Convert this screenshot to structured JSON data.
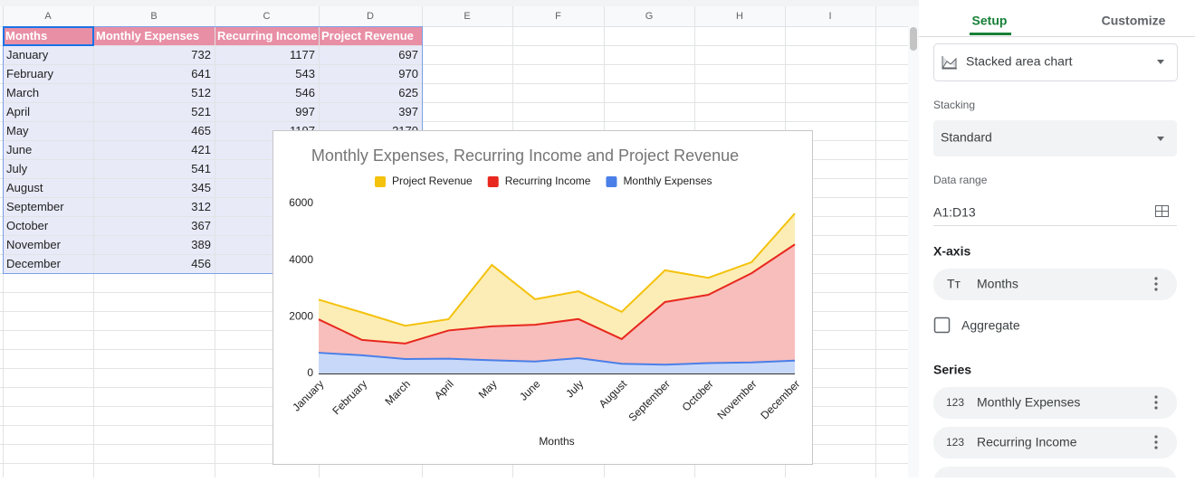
{
  "sheet": {
    "columns": [
      "A",
      "B",
      "C",
      "D",
      "E",
      "F",
      "G",
      "H",
      "I"
    ]
  },
  "sidebar": {
    "tabs": [
      "Setup",
      "Customize"
    ],
    "chart_type": "Stacked area chart",
    "stacking_label": "Stacking",
    "stacking": "Standard",
    "data_range_label": "Data range",
    "data_range": "A1:D13",
    "x_axis_label": "X-axis",
    "x_axis_icon": "Tт",
    "aggregate": "Aggregate",
    "series_label": "Series",
    "series_icon": "123"
  },
  "chart_data": {
    "type": "area",
    "stacked": true,
    "title": "Monthly Expenses, Recurring Income and Project Revenue",
    "x_label": "Months",
    "categories": [
      "January",
      "February",
      "March",
      "April",
      "May",
      "June",
      "July",
      "August",
      "September",
      "October",
      "November",
      "December"
    ],
    "series": [
      {
        "name": "Monthly Expenses",
        "color": "#4a7fe8",
        "values": [
          732,
          641,
          512,
          521,
          465,
          421,
          541,
          345,
          312,
          367,
          389,
          456
        ]
      },
      {
        "name": "Recurring Income",
        "color": "#e8281e",
        "values": [
          1177,
          543,
          546,
          997,
          1197,
          1300,
          1380,
          870,
          2210,
          2410,
          3150,
          4100
        ]
      },
      {
        "name": "Project Revenue",
        "color": "#f4c20d",
        "values": [
          697,
          970,
          625,
          397,
          2170,
          900,
          980,
          960,
          1120,
          600,
          390,
          1090
        ]
      }
    ],
    "ylim": [
      0,
      6000
    ],
    "yticks": [
      0,
      2000,
      4000,
      6000
    ],
    "grid": false,
    "legend": "top"
  }
}
